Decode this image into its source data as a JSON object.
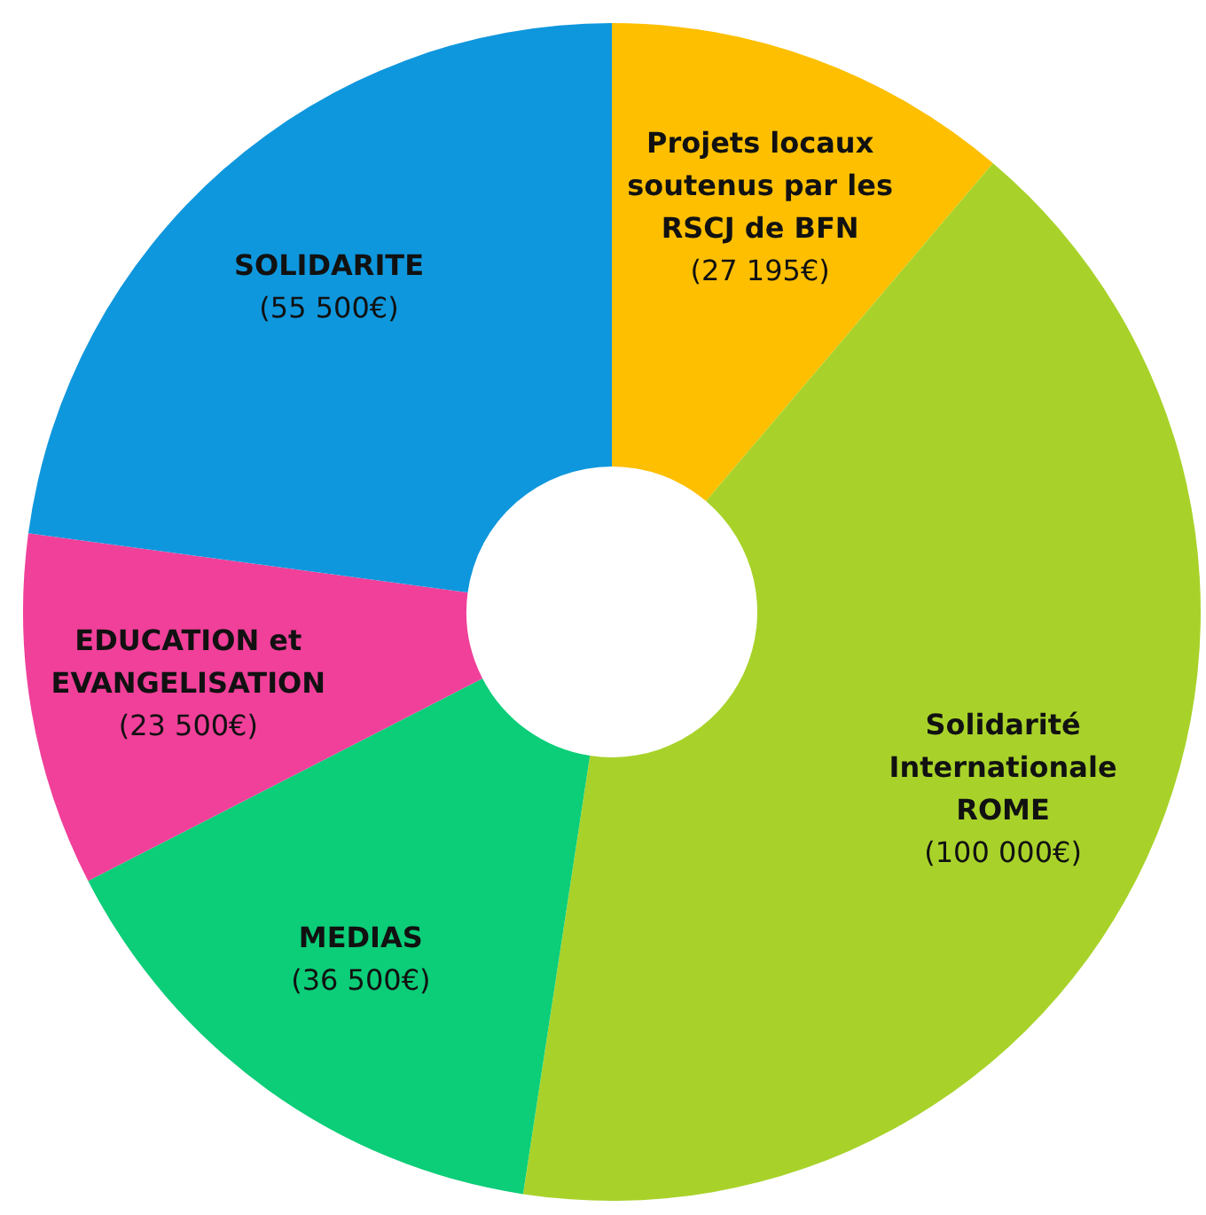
{
  "chart_data": {
    "type": "donut",
    "categories": [
      "Projets locaux soutenus par les RSCJ de BFN",
      "Solidarité Internationale ROME",
      "MEDIAS",
      "EDUCATION et EVANGELISATION",
      "SOLIDARITE"
    ],
    "values": [
      27195,
      100000,
      36500,
      23500,
      55500
    ],
    "value_labels": [
      "(27 195€)",
      "(100 000€)",
      "(36 500€)",
      "(23 500€)",
      "(55 500€)"
    ],
    "colors": [
      "#fdbf00",
      "#a8d22a",
      "#0ccd78",
      "#f0409a",
      "#0f97dd"
    ],
    "legend": false
  }
}
